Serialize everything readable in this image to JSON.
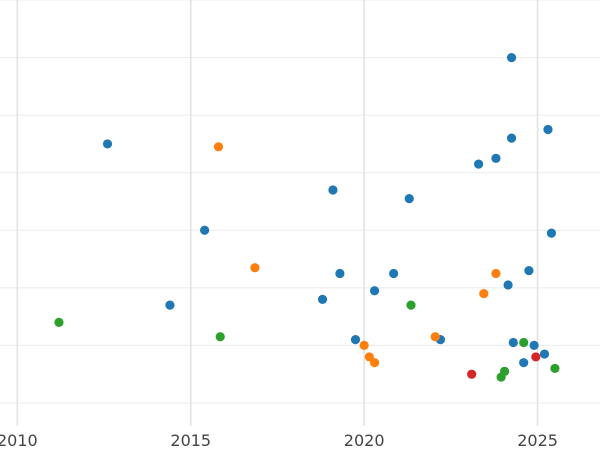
{
  "chart_data": {
    "type": "scatter",
    "title": "",
    "xlabel": "",
    "ylabel": "",
    "xlim": [
      2009.5,
      2026.8
    ],
    "ylim": [
      -0.4,
      7.0
    ],
    "x_ticks": [
      2010,
      2015,
      2020,
      2025
    ],
    "x_tick_labels": [
      "2010",
      "2015",
      "2020",
      "2025"
    ],
    "y_gridlines": [
      0.0,
      1.0,
      2.0,
      3.0,
      4.0,
      5.0,
      6.0,
      7.0
    ],
    "grid": true,
    "legend": "none",
    "series": [
      {
        "color": "#1f77b4",
        "points": [
          {
            "x": 2012.6,
            "y": 4.5
          },
          {
            "x": 2014.4,
            "y": 1.7
          },
          {
            "x": 2015.4,
            "y": 3.0
          },
          {
            "x": 2018.8,
            "y": 1.8
          },
          {
            "x": 2019.1,
            "y": 3.7
          },
          {
            "x": 2019.3,
            "y": 2.25
          },
          {
            "x": 2019.75,
            "y": 1.1
          },
          {
            "x": 2020.3,
            "y": 1.95
          },
          {
            "x": 2020.85,
            "y": 2.25
          },
          {
            "x": 2021.3,
            "y": 3.55
          },
          {
            "x": 2022.2,
            "y": 1.1
          },
          {
            "x": 2023.3,
            "y": 4.15
          },
          {
            "x": 2023.8,
            "y": 4.25
          },
          {
            "x": 2024.15,
            "y": 2.05
          },
          {
            "x": 2024.25,
            "y": 4.6
          },
          {
            "x": 2024.25,
            "y": 6.0
          },
          {
            "x": 2024.3,
            "y": 1.05
          },
          {
            "x": 2024.6,
            "y": 0.7
          },
          {
            "x": 2024.75,
            "y": 2.3
          },
          {
            "x": 2024.9,
            "y": 1.0
          },
          {
            "x": 2025.2,
            "y": 0.85
          },
          {
            "x": 2025.3,
            "y": 4.75
          },
          {
            "x": 2025.4,
            "y": 2.95
          }
        ]
      },
      {
        "color": "#ff7f0e",
        "points": [
          {
            "x": 2015.8,
            "y": 4.45
          },
          {
            "x": 2016.85,
            "y": 2.35
          },
          {
            "x": 2020.0,
            "y": 1.0
          },
          {
            "x": 2020.15,
            "y": 0.8
          },
          {
            "x": 2020.3,
            "y": 0.7
          },
          {
            "x": 2022.05,
            "y": 1.15
          },
          {
            "x": 2023.45,
            "y": 1.9
          },
          {
            "x": 2023.8,
            "y": 2.25
          }
        ]
      },
      {
        "color": "#2ca02c",
        "points": [
          {
            "x": 2011.2,
            "y": 1.4
          },
          {
            "x": 2015.85,
            "y": 1.15
          },
          {
            "x": 2021.35,
            "y": 1.7
          },
          {
            "x": 2023.95,
            "y": 0.45
          },
          {
            "x": 2024.05,
            "y": 0.55
          },
          {
            "x": 2024.6,
            "y": 1.05
          },
          {
            "x": 2025.5,
            "y": 0.6
          }
        ]
      },
      {
        "color": "#d62728",
        "points": [
          {
            "x": 2023.1,
            "y": 0.5
          },
          {
            "x": 2024.95,
            "y": 0.8
          }
        ]
      }
    ]
  }
}
